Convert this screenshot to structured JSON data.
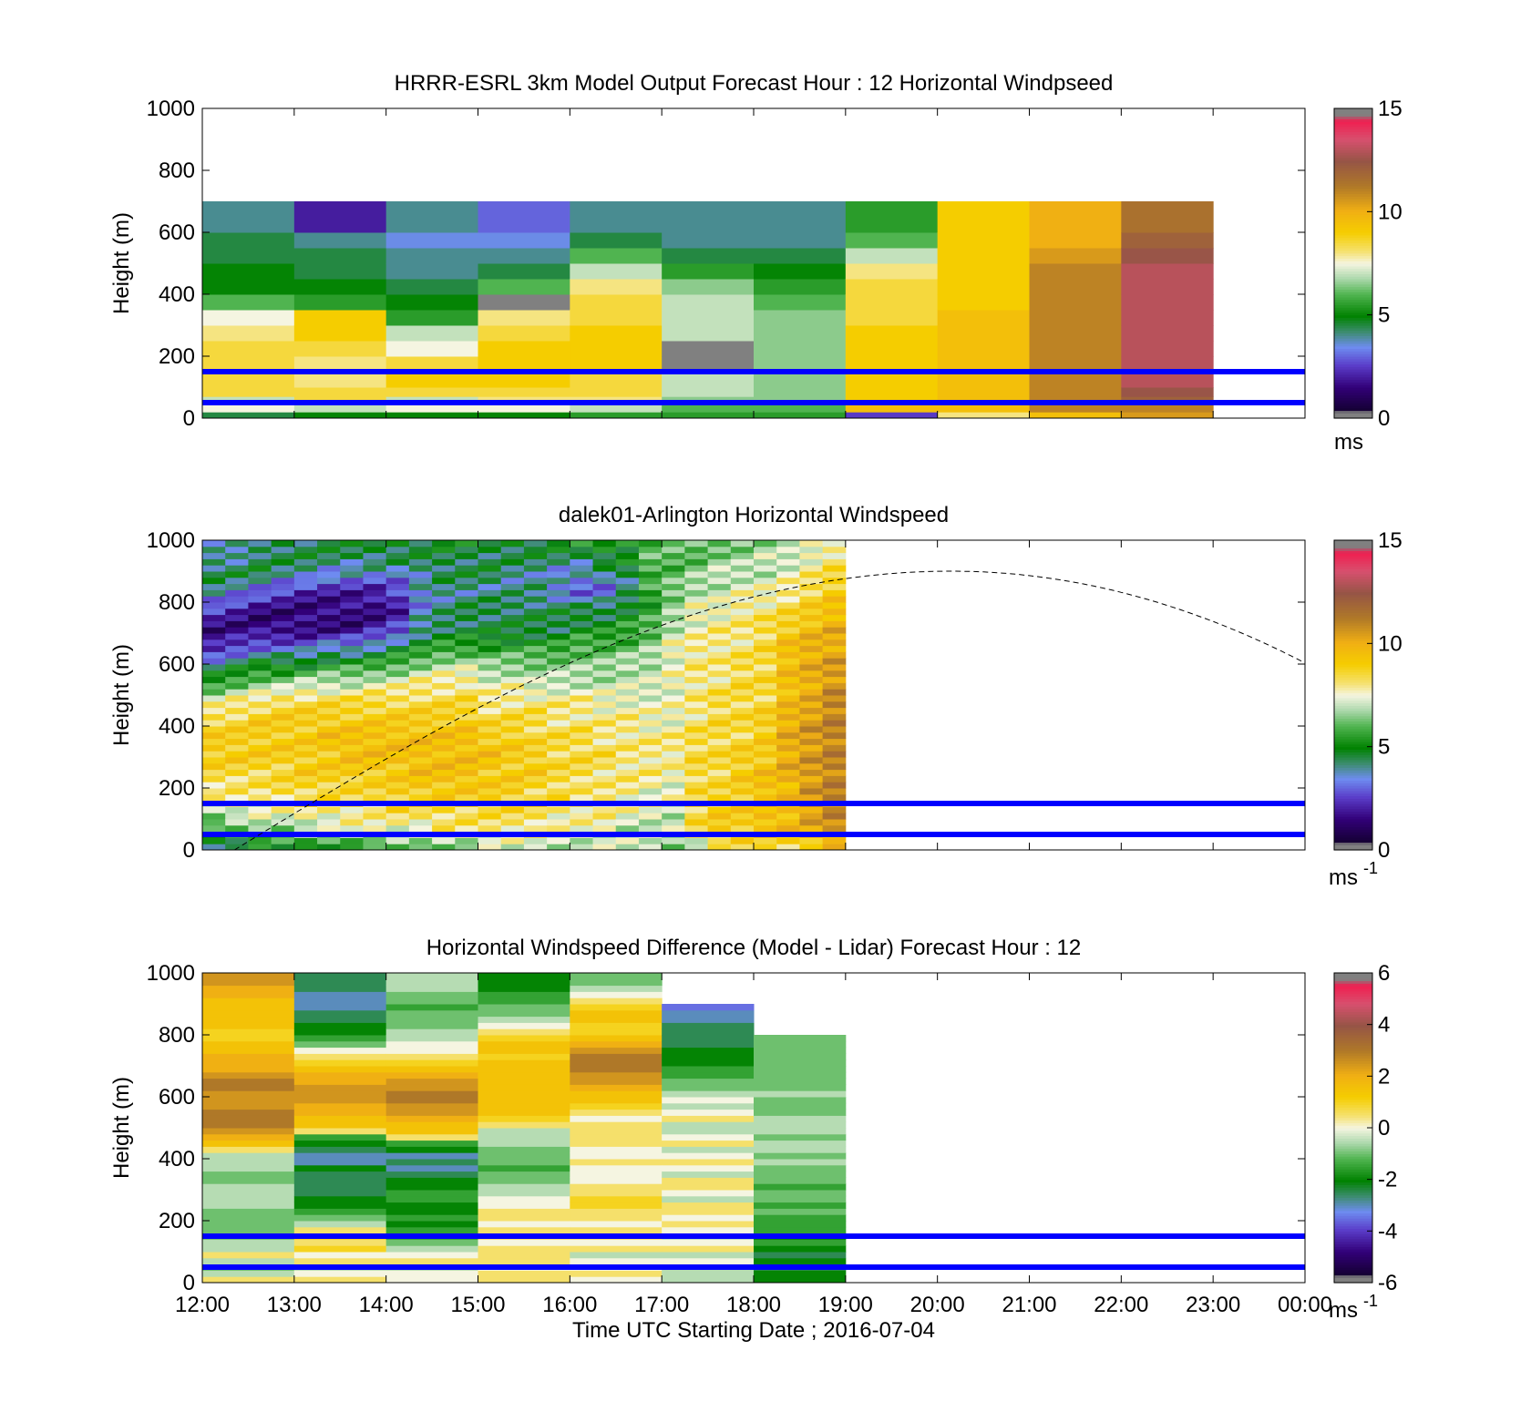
{
  "figure": {
    "xlabel": "Time UTC  Starting Date ; 2016-07-04",
    "x_ticks": [
      "12:00",
      "13:00",
      "14:00",
      "15:00",
      "16:00",
      "17:00",
      "18:00",
      "19:00",
      "20:00",
      "21:00",
      "22:00",
      "23:00",
      "00:00"
    ]
  },
  "colors": {
    "reference_lines": "#0000ff",
    "sun_curve": "#000000"
  },
  "chart_data": [
    {
      "type": "heatmap",
      "title": "HRRR-ESRL 3km Model Output   Forecast Hour : 12 Horizontal Windpseed",
      "ylabel": "Height (m)",
      "x_range_hours": [
        12,
        24
      ],
      "ylim": [
        0,
        1000
      ],
      "y_ticks": [
        "0",
        "200",
        "400",
        "600",
        "800",
        "1000"
      ],
      "colorbar": {
        "min": 0,
        "max": 15,
        "ticks": [
          "0",
          "5",
          "10",
          "15"
        ],
        "unit": "ms",
        "unit_sup": ""
      },
      "reference_lines_m": [
        50,
        150
      ],
      "time_bins": [
        "12:00",
        "13:00",
        "14:00",
        "15:00",
        "16:00",
        "17:00",
        "18:00",
        "19:00",
        "20:00",
        "21:00",
        "22:00"
      ],
      "height_bounds_m": [
        0,
        20,
        50,
        70,
        100,
        150,
        200,
        250,
        300,
        350,
        400,
        450,
        500,
        550,
        600,
        700,
        800,
        900,
        1000
      ],
      "values_ms": [
        [
          4.5,
          7.5,
          7.0,
          8.5,
          8.5,
          8.5,
          8.5,
          8.0,
          7.5,
          6.0,
          5.0,
          5.0,
          4.5,
          4.5,
          4.0
        ],
        [
          5.0,
          7.0,
          8.5,
          8.5,
          8.0,
          8.0,
          8.5,
          9.0,
          9.0,
          5.5,
          5.0,
          4.5,
          4.5,
          4.0,
          2.0
        ],
        [
          5.0,
          7.5,
          7.0,
          8.5,
          9.0,
          8.5,
          7.5,
          7.0,
          5.5,
          5.0,
          4.5,
          4.0,
          4.0,
          3.5,
          4.0
        ],
        [
          5.0,
          7.5,
          8.0,
          8.5,
          9.0,
          9.0,
          9.0,
          8.5,
          8.0,
          0.0,
          6.0,
          4.5,
          4.0,
          3.5,
          3.0
        ],
        [
          5.5,
          7.0,
          8.0,
          8.5,
          8.5,
          9.0,
          9.0,
          9.0,
          8.5,
          8.5,
          8.0,
          7.0,
          6.0,
          4.5,
          4.0
        ],
        [
          5.5,
          6.0,
          6.5,
          7.0,
          7.0,
          0.0,
          0.0,
          7.0,
          7.0,
          7.0,
          6.5,
          5.5,
          4.5,
          4.0,
          4.0
        ],
        [
          5.5,
          6.0,
          6.5,
          6.5,
          6.5,
          6.5,
          6.5,
          6.5,
          6.5,
          6.0,
          5.5,
          5.0,
          4.5,
          4.0,
          4.0
        ],
        [
          2.5,
          9.5,
          9.0,
          9.0,
          9.0,
          9.0,
          9.0,
          9.0,
          8.5,
          8.5,
          8.5,
          8.0,
          7.0,
          6.0,
          5.5
        ],
        [
          8.0,
          9.5,
          9.5,
          9.5,
          9.5,
          9.5,
          9.5,
          9.5,
          9.5,
          9.0,
          9.0,
          9.0,
          9.0,
          9.0,
          9.0
        ],
        [
          9.5,
          11.0,
          11.0,
          11.0,
          11.0,
          11.0,
          11.0,
          11.0,
          11.0,
          11.0,
          11.0,
          11.0,
          10.5,
          10.0,
          10.0
        ],
        [
          10.5,
          11.0,
          12.0,
          12.5,
          13.0,
          13.0,
          13.0,
          13.0,
          13.0,
          13.0,
          13.0,
          13.0,
          12.5,
          12.0,
          11.5
        ]
      ]
    },
    {
      "type": "heatmap",
      "title": "dalek01-Arlington  Horizontal Windspeed",
      "ylabel": "Height (m)",
      "x_range_hours": [
        12,
        24
      ],
      "ylim": [
        0,
        1000
      ],
      "y_ticks": [
        "0",
        "200",
        "400",
        "600",
        "800",
        "1000"
      ],
      "colorbar": {
        "min": 0,
        "max": 15,
        "ticks": [
          "0",
          "5",
          "10",
          "15"
        ],
        "unit": "ms",
        "unit_sup": "-1"
      },
      "reference_lines_m": [
        50,
        150
      ],
      "lidar_end_time": "19:00",
      "profile_step_hours": 0.25,
      "gate_height_m": 20,
      "profiles_ms": [
        [
          4.5,
          5.5,
          7.0,
          8.0,
          8.5,
          9.0,
          9.0,
          8.5,
          7.5,
          5.5,
          4.0,
          2.0,
          1.5,
          2.5,
          4.0,
          4.5,
          4.0,
          3.0
        ],
        [
          4.5,
          6.0,
          7.5,
          8.0,
          8.5,
          9.0,
          9.0,
          8.5,
          8.0,
          6.0,
          4.5,
          2.5,
          1.5,
          2.0,
          3.5,
          4.5,
          4.0,
          3.5
        ],
        [
          5.0,
          6.5,
          7.5,
          8.0,
          8.5,
          9.0,
          9.0,
          9.0,
          8.0,
          6.5,
          5.0,
          3.0,
          1.5,
          1.5,
          3.0,
          4.5,
          4.5,
          4.0
        ],
        [
          5.0,
          6.5,
          7.5,
          8.5,
          8.5,
          9.0,
          9.0,
          9.0,
          8.5,
          6.5,
          5.0,
          3.0,
          1.5,
          1.5,
          2.5,
          4.0,
          4.5,
          4.5
        ],
        [
          5.0,
          7.0,
          8.0,
          8.5,
          9.0,
          9.0,
          9.0,
          9.0,
          8.5,
          7.0,
          5.0,
          3.0,
          1.5,
          1.5,
          2.0,
          4.0,
          4.5,
          4.5
        ],
        [
          5.5,
          7.0,
          8.0,
          8.5,
          9.0,
          9.0,
          9.5,
          9.0,
          8.5,
          7.0,
          5.5,
          3.5,
          1.5,
          1.5,
          2.0,
          3.5,
          4.5,
          4.5
        ],
        [
          5.5,
          7.5,
          8.0,
          8.5,
          9.0,
          9.5,
          9.5,
          9.0,
          8.5,
          7.0,
          5.5,
          3.5,
          1.5,
          1.5,
          2.0,
          3.5,
          4.5,
          4.5
        ],
        [
          5.5,
          7.5,
          8.0,
          8.5,
          9.0,
          9.5,
          9.5,
          9.0,
          8.5,
          7.5,
          5.5,
          4.0,
          2.0,
          1.5,
          2.0,
          3.5,
          4.5,
          5.0
        ],
        [
          6.0,
          7.5,
          8.5,
          9.0,
          9.0,
          9.5,
          9.5,
          9.0,
          8.5,
          7.5,
          6.0,
          4.5,
          2.5,
          2.0,
          2.5,
          3.5,
          4.5,
          5.0
        ],
        [
          6.0,
          7.5,
          8.5,
          9.0,
          9.5,
          9.5,
          9.5,
          9.0,
          8.5,
          8.0,
          6.5,
          5.0,
          4.0,
          3.5,
          3.5,
          4.0,
          4.5,
          5.0
        ],
        [
          6.5,
          8.0,
          8.5,
          9.0,
          9.5,
          9.5,
          9.5,
          9.0,
          8.5,
          8.0,
          7.0,
          5.5,
          4.5,
          4.0,
          4.0,
          4.5,
          4.5,
          5.0
        ],
        [
          6.5,
          8.0,
          8.5,
          9.0,
          9.5,
          9.5,
          9.5,
          9.0,
          8.5,
          8.0,
          7.0,
          5.5,
          4.5,
          4.5,
          4.0,
          4.5,
          4.5,
          5.0
        ],
        [
          7.0,
          8.0,
          8.5,
          9.0,
          9.0,
          9.5,
          9.0,
          8.5,
          8.0,
          7.5,
          6.5,
          5.5,
          4.5,
          4.5,
          4.0,
          4.5,
          4.5,
          5.0
        ],
        [
          7.0,
          8.0,
          8.5,
          9.0,
          9.0,
          9.0,
          9.0,
          8.5,
          8.0,
          7.5,
          6.5,
          5.5,
          4.5,
          4.5,
          4.0,
          4.0,
          4.5,
          5.0
        ],
        [
          7.0,
          8.0,
          8.5,
          8.5,
          9.0,
          9.0,
          8.5,
          8.5,
          8.0,
          7.0,
          6.5,
          5.5,
          4.5,
          4.5,
          4.0,
          4.0,
          4.5,
          5.0
        ],
        [
          7.0,
          7.5,
          8.0,
          8.5,
          8.5,
          8.5,
          8.5,
          8.0,
          8.0,
          7.0,
          6.5,
          5.5,
          4.5,
          4.5,
          3.5,
          3.5,
          4.5,
          5.0
        ],
        [
          7.0,
          7.5,
          8.0,
          8.0,
          8.5,
          8.5,
          8.5,
          8.0,
          8.0,
          7.0,
          6.5,
          6.0,
          5.0,
          4.5,
          3.0,
          3.5,
          4.5,
          5.5
        ],
        [
          7.0,
          7.5,
          8.0,
          8.0,
          8.0,
          8.5,
          8.0,
          8.0,
          7.5,
          7.0,
          6.5,
          6.0,
          5.0,
          4.5,
          3.0,
          4.0,
          5.0,
          5.5
        ],
        [
          7.0,
          7.0,
          7.5,
          8.0,
          8.0,
          8.0,
          8.0,
          8.0,
          7.5,
          7.0,
          7.0,
          6.0,
          5.5,
          5.0,
          4.0,
          4.5,
          5.0,
          5.5
        ],
        [
          7.0,
          7.0,
          7.5,
          7.5,
          8.0,
          8.0,
          8.0,
          7.5,
          7.5,
          7.0,
          7.0,
          6.5,
          6.0,
          5.5,
          5.5,
          6.0,
          6.0,
          6.0
        ],
        [
          6.5,
          7.0,
          7.0,
          7.5,
          7.5,
          8.0,
          8.0,
          7.5,
          7.5,
          7.5,
          7.5,
          7.5,
          7.0,
          6.5,
          6.5,
          6.0,
          6.0,
          6.0
        ],
        [
          7.0,
          8.5,
          8.5,
          8.5,
          8.5,
          8.5,
          8.5,
          8.0,
          8.0,
          8.0,
          8.0,
          8.0,
          7.5,
          7.5,
          7.0,
          6.5,
          6.0,
          6.0
        ],
        [
          8.0,
          9.0,
          9.0,
          8.5,
          8.5,
          8.5,
          8.5,
          8.5,
          8.5,
          8.0,
          8.0,
          8.0,
          8.0,
          7.5,
          7.0,
          7.0,
          6.5,
          6.0
        ],
        [
          8.5,
          9.0,
          9.0,
          9.0,
          9.0,
          9.0,
          8.5,
          8.5,
          8.5,
          8.5,
          8.5,
          8.0,
          8.0,
          8.0,
          7.5,
          7.0,
          6.5,
          6.5
        ],
        [
          8.5,
          9.5,
          9.5,
          9.5,
          9.5,
          9.0,
          9.0,
          9.0,
          8.5,
          8.5,
          8.5,
          8.5,
          8.5,
          8.0,
          7.5,
          7.0,
          7.0,
          6.5
        ],
        [
          8.5,
          9.5,
          9.5,
          9.5,
          10.0,
          10.0,
          10.0,
          10.0,
          9.5,
          9.5,
          9.5,
          9.5,
          9.0,
          8.5,
          8.0,
          7.5,
          7.0,
          6.5
        ],
        [
          9.0,
          10.0,
          10.5,
          10.5,
          10.5,
          10.5,
          10.5,
          10.5,
          10.0,
          10.0,
          10.0,
          10.0,
          9.5,
          9.0,
          8.5,
          8.0,
          7.5,
          7.0
        ],
        [
          9.5,
          10.5,
          11.0,
          11.0,
          11.0,
          11.0,
          11.0,
          11.0,
          11.0,
          10.5,
          10.5,
          10.0,
          10.0,
          9.5,
          9.0,
          8.5,
          8.0,
          7.5
        ]
      ]
    },
    {
      "type": "heatmap",
      "title": "Horizontal Windspeed Difference (Model - Lidar) Forecast Hour : 12",
      "ylabel": "Height (m)",
      "x_range_hours": [
        12,
        24
      ],
      "ylim": [
        0,
        1000
      ],
      "y_ticks": [
        "0",
        "200",
        "400",
        "600",
        "800",
        "1000"
      ],
      "colorbar": {
        "min": -6,
        "max": 6,
        "ticks": [
          "-6",
          "-4",
          "-2",
          "0",
          "2",
          "4",
          "6"
        ],
        "unit": "ms",
        "unit_sup": "-1"
      },
      "reference_lines_m": [
        50,
        150
      ],
      "time_bins": [
        "12:00",
        "13:00",
        "14:00",
        "15:00",
        "16:00",
        "17:00",
        "18:00"
      ],
      "gate_height_m": 20,
      "profiles_ms": [
        [
          0.5,
          -0.5,
          -1.0,
          -0.5,
          0.5,
          -0.5,
          -0.5,
          -1.0,
          -1.0,
          -1.0,
          -1.0,
          -1.0,
          -0.5,
          -0.5,
          -0.5,
          -0.5,
          -1.0,
          -1.0,
          -0.5,
          -0.5,
          -0.5,
          0.5,
          1.5,
          2.0,
          2.5,
          3.0,
          3.0,
          3.0,
          2.5,
          2.5,
          2.5,
          3.0,
          3.0,
          2.5,
          2.0,
          2.0,
          2.0,
          1.5,
          1.5,
          1.0,
          1.0,
          1.5,
          1.5,
          1.5,
          1.5,
          1.5,
          2.0,
          2.0,
          2.5,
          2.5
        ],
        [
          0.5,
          0.0,
          -0.5,
          0.5,
          0.0,
          1.0,
          0.5,
          1.0,
          0.5,
          -0.5,
          -1.0,
          -1.5,
          -2.0,
          -2.0,
          -2.5,
          -2.5,
          -2.5,
          -2.5,
          -2.0,
          -3.0,
          -3.0,
          -2.5,
          -2.0,
          -1.5,
          0.5,
          1.5,
          1.5,
          2.0,
          2.0,
          2.5,
          2.5,
          2.5,
          2.0,
          2.0,
          1.5,
          1.0,
          0.5,
          0.0,
          -1.0,
          -1.5,
          -2.0,
          -2.0,
          -2.5,
          -2.5,
          -3.0,
          -3.0,
          -3.0,
          -2.5,
          -2.5,
          -2.5
        ],
        [
          0.0,
          0.0,
          -0.5,
          0.5,
          0.0,
          -0.5,
          -1.0,
          -1.5,
          -1.5,
          -2.0,
          -1.5,
          -2.0,
          -2.0,
          -1.5,
          -1.5,
          -2.0,
          -2.0,
          -2.5,
          -3.0,
          -2.5,
          -3.0,
          -2.0,
          -1.5,
          0.5,
          1.5,
          1.5,
          2.0,
          2.5,
          2.5,
          3.0,
          3.0,
          2.5,
          2.5,
          2.0,
          1.5,
          1.0,
          0.5,
          0.0,
          0.0,
          -0.5,
          -0.5,
          -1.0,
          -1.0,
          -1.0,
          -1.5,
          -1.0,
          -1.0,
          -0.5,
          -0.5,
          -0.5
        ],
        [
          0.5,
          0.5,
          0.0,
          0.5,
          0.5,
          0.5,
          0.0,
          0.5,
          0.5,
          0.0,
          0.5,
          0.5,
          0.0,
          0.0,
          -0.5,
          -0.5,
          -1.0,
          -1.0,
          -1.5,
          -1.0,
          -1.0,
          -1.0,
          -0.5,
          -0.5,
          -0.5,
          0.5,
          1.0,
          1.5,
          1.5,
          1.5,
          1.5,
          1.5,
          1.5,
          1.5,
          1.5,
          1.5,
          1.0,
          1.5,
          1.5,
          1.0,
          0.5,
          0.0,
          -0.5,
          -1.0,
          -1.0,
          -1.5,
          -1.5,
          -2.0,
          -2.0,
          -2.0
        ],
        [
          0.0,
          0.5,
          0.0,
          0.0,
          -0.5,
          0.5,
          0.0,
          0.5,
          0.5,
          0.0,
          0.5,
          0.5,
          1.0,
          1.0,
          0.5,
          0.5,
          0.0,
          0.0,
          0.0,
          0.5,
          0.0,
          0.0,
          0.5,
          0.5,
          0.5,
          0.5,
          0.0,
          0.5,
          1.0,
          1.5,
          1.5,
          2.0,
          2.5,
          2.5,
          3.0,
          3.0,
          3.0,
          2.5,
          2.0,
          1.5,
          1.0,
          1.0,
          1.5,
          1.5,
          1.0,
          0.5,
          0.0,
          -0.5,
          -1.0,
          -1.0
        ],
        [
          -0.5,
          -0.5,
          -0.5,
          0.0,
          -0.5,
          0.5,
          0.0,
          -0.5,
          0.0,
          0.5,
          0.0,
          0.5,
          0.5,
          -0.5,
          0.0,
          0.5,
          0.5,
          -0.5,
          0.0,
          0.5,
          0.0,
          -0.5,
          0.5,
          0.0,
          -0.5,
          -0.5,
          0.5,
          0.0,
          -0.5,
          0.0,
          -0.5,
          -1.0,
          -1.0,
          -1.5,
          -1.5,
          -2.0,
          -2.0,
          -2.0,
          -2.5,
          -2.5,
          -2.5,
          -2.5,
          -3.0,
          -3.0,
          -3.5
        ],
        [
          -2.0,
          -2.0,
          -2.5,
          -2.0,
          -2.5,
          -2.0,
          -1.5,
          -2.0,
          -1.5,
          -1.5,
          -1.5,
          -1.0,
          -1.5,
          -1.0,
          -1.0,
          -1.5,
          -1.0,
          -1.0,
          -1.0,
          -0.5,
          -1.0,
          -0.5,
          -0.5,
          -1.0,
          -0.5,
          -0.5,
          -0.5,
          -1.0,
          -1.0,
          -1.0,
          -0.5,
          -1.0,
          -1.0,
          -1.0,
          -1.0,
          -1.0,
          -1.0,
          -1.0,
          -1.0,
          -1.0
        ]
      ]
    }
  ]
}
